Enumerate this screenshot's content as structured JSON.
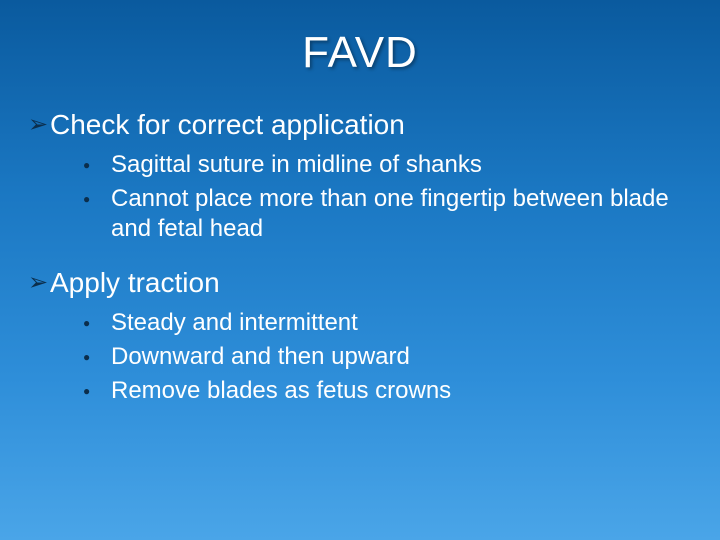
{
  "slide": {
    "title": "FAVD",
    "background_gradient": [
      "#0a5a9e",
      "#1a77c2",
      "#2e8ed9",
      "#4aa5e8"
    ],
    "text_color": "#ffffff",
    "bullet_color": "#0b2e4c",
    "title_fontsize": 44,
    "top_fontsize": 28,
    "sub_fontsize": 24,
    "top_bullet_glyph": "➢",
    "sub_bullet_glyph": "●",
    "items": [
      {
        "label": "Check for correct application",
        "subitems": [
          "Sagittal suture in midline of shanks",
          "Cannot place more than one fingertip between blade and fetal head"
        ]
      },
      {
        "label": "Apply traction",
        "subitems": [
          "Steady and intermittent",
          "Downward and then upward",
          "Remove blades as fetus crowns"
        ]
      }
    ]
  }
}
